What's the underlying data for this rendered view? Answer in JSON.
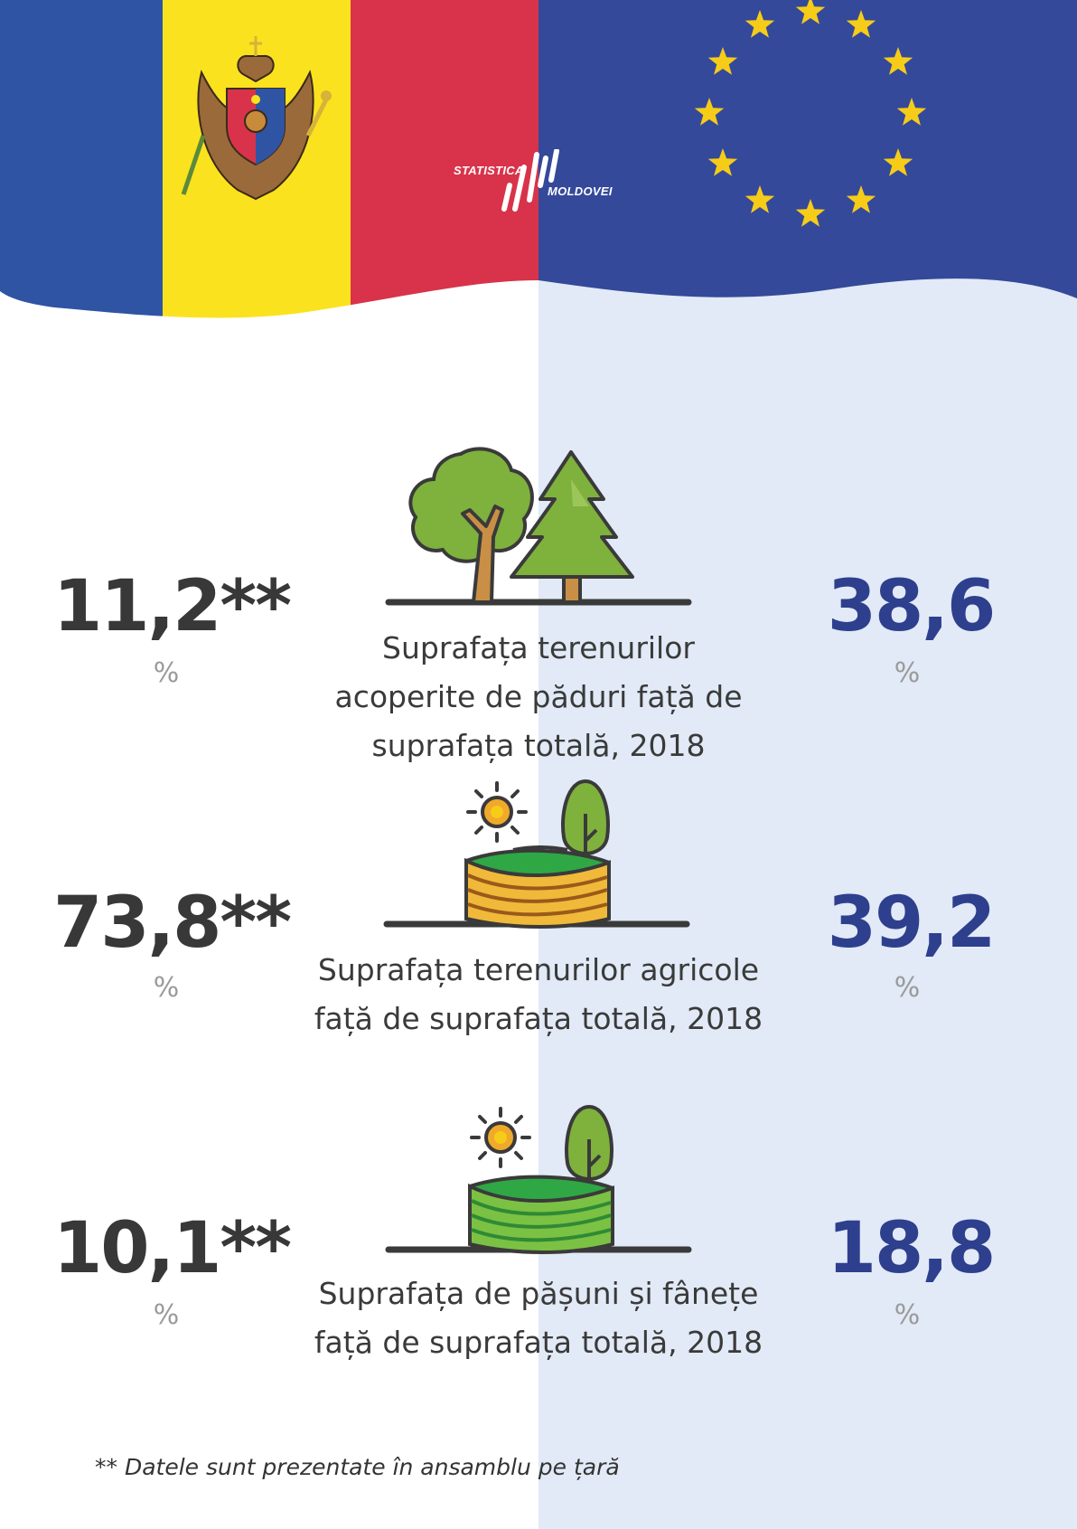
{
  "header": {
    "logo_line1": "STATISTICA",
    "logo_line2": "MOLDOVEI",
    "colors": {
      "moldova_blue": "#2f54a4",
      "moldova_yellow": "#fbe21e",
      "moldova_red": "#d8334a",
      "eu_blue": "#35499a",
      "eu_star": "#f6cc18"
    }
  },
  "indicators": [
    {
      "left_value": "11,2**",
      "left_unit": "%",
      "right_value": "38,6",
      "right_unit": "%",
      "caption_lines": [
        "Suprafața terenurilor",
        "acoperite de păduri față de",
        "suprafața totală, 2018"
      ],
      "icon": "forest-trees-icon"
    },
    {
      "left_value": "73,8**",
      "left_unit": "%",
      "right_value": "39,2",
      "right_unit": "%",
      "caption_lines": [
        "Suprafața terenurilor agricole",
        "față de suprafața totală, 2018"
      ],
      "icon": "agricultural-field-icon"
    },
    {
      "left_value": "10,1**",
      "left_unit": "%",
      "right_value": "18,8",
      "right_unit": "%",
      "caption_lines": [
        "Suprafața de pășuni și fânețe",
        "față de suprafața totală, 2018"
      ],
      "icon": "pasture-meadow-icon"
    }
  ],
  "footnote": "** Datele sunt prezentate în ansamblu pe țară"
}
